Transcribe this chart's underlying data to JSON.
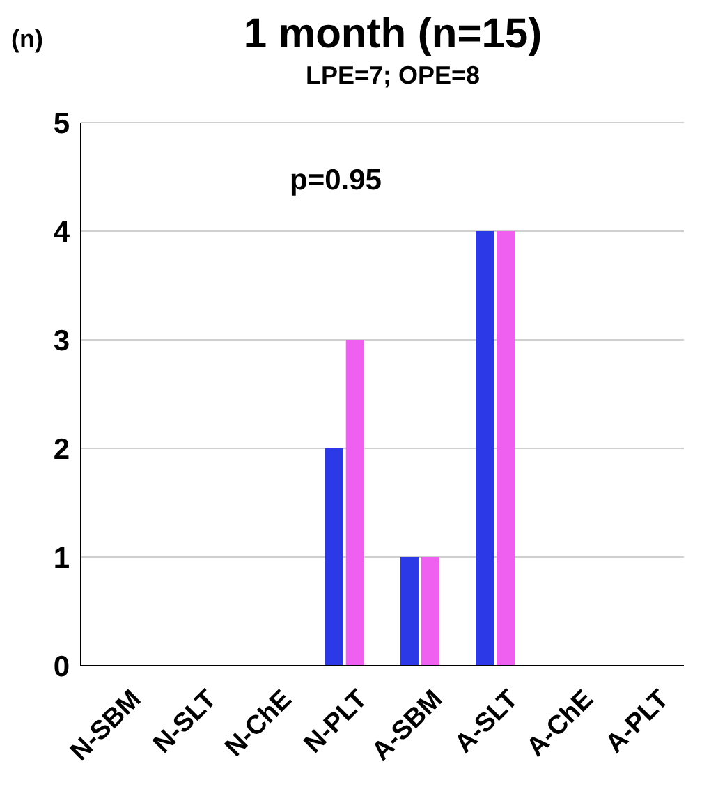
{
  "chart_data": {
    "type": "bar",
    "title": "1 month (n=15)",
    "subtitle": "LPE=7; OPE=8",
    "ylabel": "(n)",
    "annotations": [
      "p=0.95"
    ],
    "categories": [
      "N-SBM",
      "N-SLT",
      "N-ChE",
      "N-PLT",
      "A-SBM",
      "A-SLT",
      "A-ChE",
      "A-PLT"
    ],
    "series": [
      {
        "color": "#2b3ae6",
        "values": [
          0,
          0,
          0,
          2,
          1,
          4,
          0,
          0
        ]
      },
      {
        "color": "#f060f0",
        "values": [
          0,
          0,
          0,
          3,
          1,
          4,
          0,
          0
        ]
      }
    ],
    "ylim": [
      0,
      5
    ],
    "yticks": [
      0,
      1,
      2,
      3,
      4,
      5
    ],
    "grid": "y",
    "legend": false
  }
}
